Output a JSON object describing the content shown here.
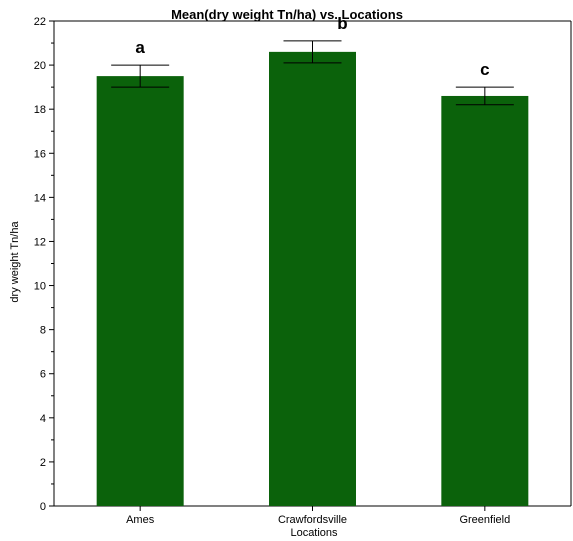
{
  "chart_data": {
    "type": "bar",
    "title": "Mean(dry weight Tn/ha) vs. Locations",
    "xlabel": "Locations",
    "ylabel": "dry weight Tn/ha",
    "categories": [
      "Ames",
      "Crawfordsville",
      "Greenfield"
    ],
    "values": [
      19.5,
      20.6,
      18.6
    ],
    "error_low": [
      19.0,
      20.1,
      18.2
    ],
    "error_high": [
      20.0,
      21.1,
      19.0
    ],
    "significance_letters": [
      "a",
      "b",
      "c"
    ],
    "ylim": [
      0,
      22
    ],
    "y_ticks": [
      0,
      2,
      4,
      6,
      8,
      10,
      12,
      14,
      16,
      18,
      20,
      22
    ],
    "y_tick_labels": [
      "0",
      "2",
      "4",
      "6",
      "8",
      "10",
      "12",
      "14",
      "16",
      "18",
      "20",
      "22"
    ],
    "bar_color": "#0b620b",
    "grid": false
  }
}
